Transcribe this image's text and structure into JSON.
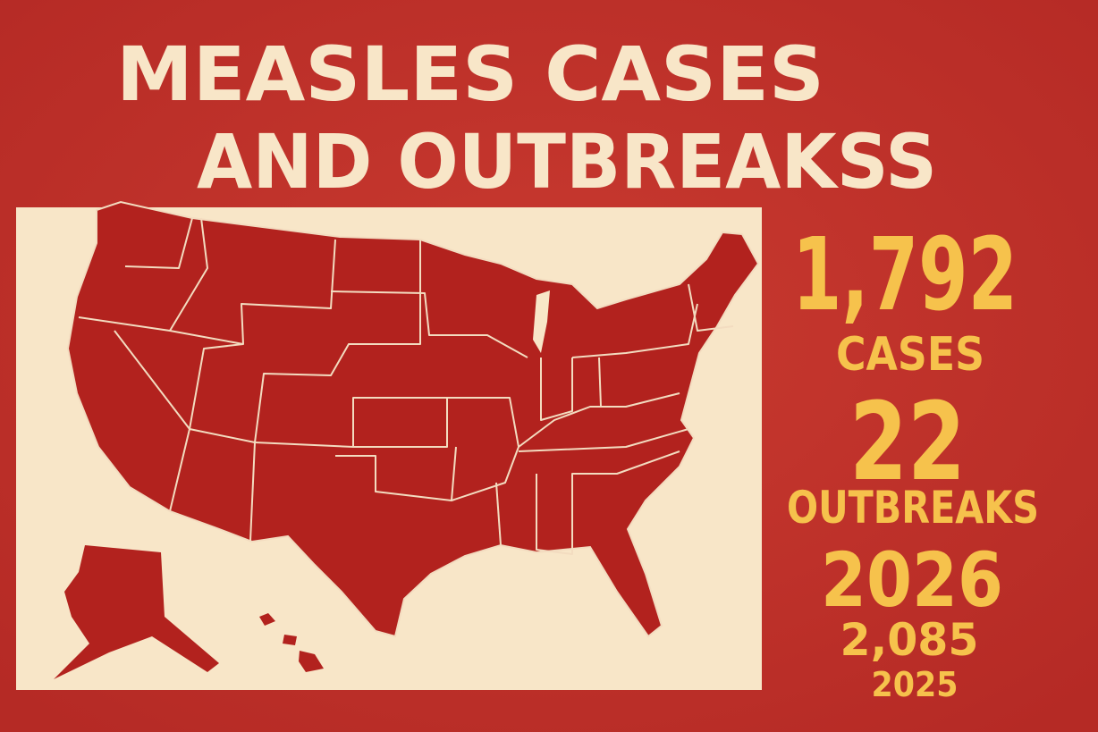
{
  "poster": {
    "title": [
      "MEASLES CASES",
      "AND OUTBREAKSS"
    ],
    "stats": [
      {
        "number": "1,792",
        "label": "CASES"
      },
      {
        "number": "22",
        "label": "OUTBREAKS"
      },
      {
        "number": "2026",
        "label": "2,085"
      }
    ],
    "footer": "2025"
  }
}
